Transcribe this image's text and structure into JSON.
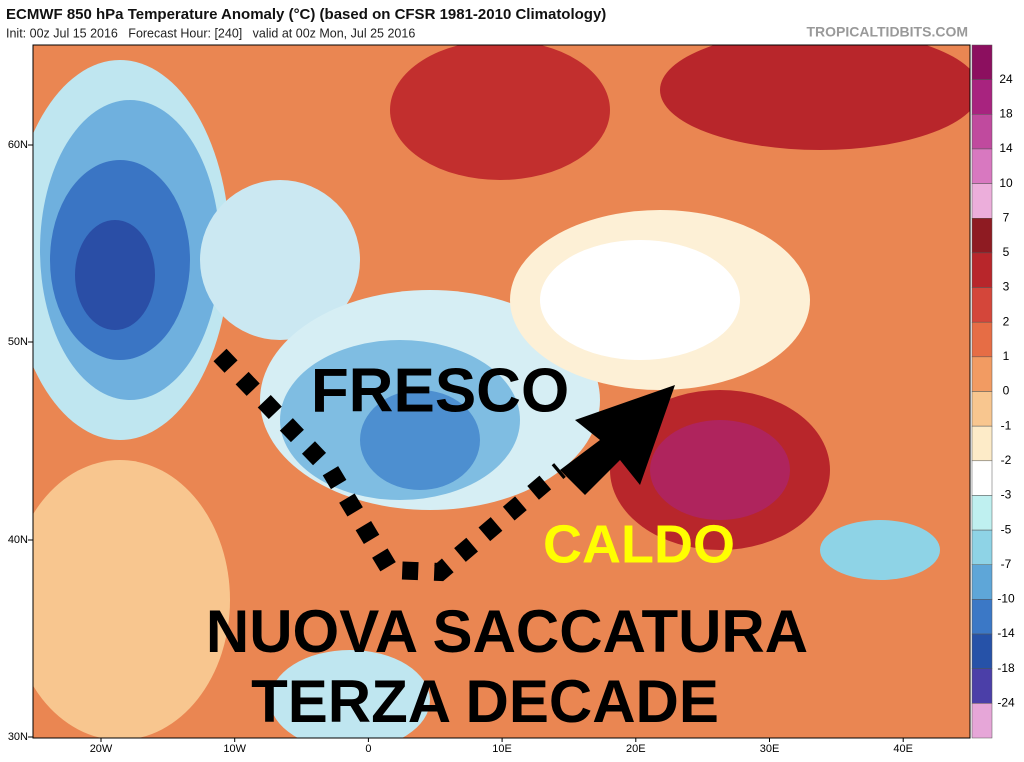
{
  "header": {
    "title": "ECMWF 850 hPa Temperature Anomaly (°C) (based on CFSR 1981-2010 Climatology)",
    "subtitle": "Init: 00z Jul 15 2016   Forecast Hour: [240]   valid at 00z Mon, Jul 25 2016",
    "credit": "TROPICALTIDBITS.COM"
  },
  "axes": {
    "lat": [
      "60N",
      "50N",
      "40N",
      "30N"
    ],
    "lon": [
      "20W",
      "10W",
      "0",
      "10E",
      "20E",
      "30E",
      "40E"
    ]
  },
  "colorbar": {
    "labels": [
      24,
      18,
      14,
      10,
      7,
      5,
      3,
      2,
      1,
      0,
      -1,
      -2,
      -3,
      -5,
      -7,
      -10,
      -14,
      -18,
      -24
    ],
    "colors": [
      "#8c0f5f",
      "#a8237f",
      "#c04a9e",
      "#d878c0",
      "#ecaedb",
      "#8e1b22",
      "#b8262b",
      "#d4463a",
      "#e66d45",
      "#f29b62",
      "#f8c68f",
      "#fdebc8",
      "#ffffff",
      "#bff0f0",
      "#8ed3e6",
      "#5ea6d8",
      "#3b78c6",
      "#2652a8",
      "#4b3fa8",
      "#e6a6d8"
    ]
  },
  "annotations": {
    "fresco": "FRESCO",
    "caldo": "CALDO",
    "line1": "NUOVA SACCATURA",
    "line2": "TERZA DECADE"
  }
}
